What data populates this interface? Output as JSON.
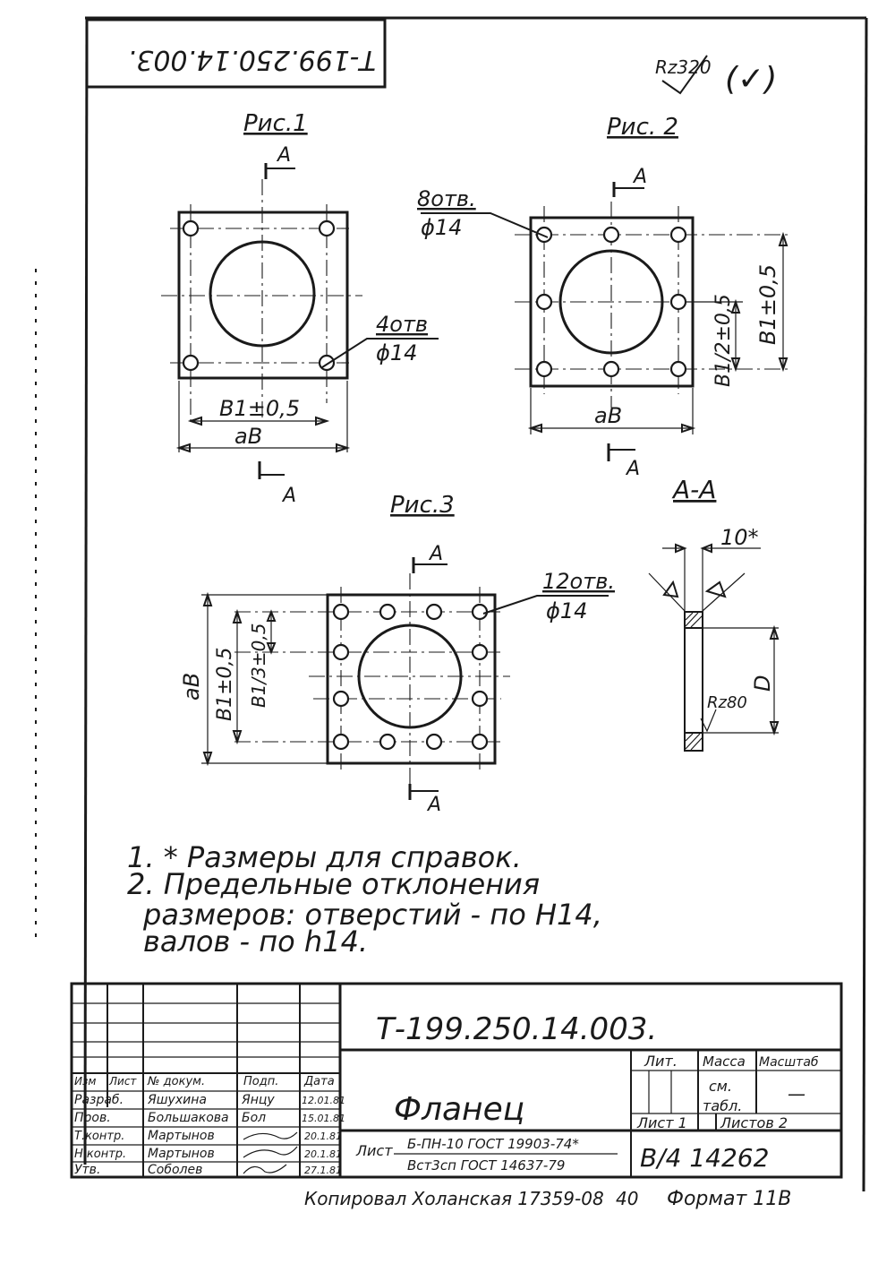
{
  "document": {
    "rotated_code": "Т-199.250.14.003.",
    "roughness_general": "Rz320",
    "check_mark": "(✓)"
  },
  "figures": {
    "fig1": {
      "title": "Рис.1",
      "section_mark": "A",
      "holes_label": "4отв",
      "holes_dia": "ϕ14",
      "dim_b1": "B1±0,5",
      "dim_ab": "aB"
    },
    "fig2": {
      "title": "Рис. 2",
      "section_mark": "A",
      "holes_label": "8отв.",
      "holes_dia": "ϕ14",
      "dim_half": "B1/2±0,5",
      "dim_b1": "B1±0,5",
      "dim_ab": "aB"
    },
    "fig3": {
      "title": "Рис.3",
      "section_mark": "A",
      "holes_label": "12отв.",
      "holes_dia": "ϕ14",
      "dim_ab": "aB",
      "dim_b1": "B1±0,5",
      "dim_third": "B1/3±0,5"
    },
    "section": {
      "title": "A-A",
      "thickness": "10*",
      "diameter": "D",
      "roughness": "Rz80"
    }
  },
  "notes": {
    "line1": "1. * Размеры для справок.",
    "line2": "2. Предельные отклонения",
    "line3": "размеров: отверстий - по H14,",
    "line4": "валов - по h14."
  },
  "title_block": {
    "designation": "Т-199.250.14.003.",
    "name": "Фланец",
    "headers": {
      "izm": "Изм",
      "list": "Лист",
      "doc_no": "№ докум.",
      "sign": "Подп.",
      "date": "Дата"
    },
    "rows": [
      {
        "role": "Разраб.",
        "name": "Яшухина",
        "sign": "Янцу",
        "date": "12.01.81"
      },
      {
        "role": "Пров.",
        "name": "Большакова",
        "sign": "Бол",
        "date": "15.01.81"
      },
      {
        "role": "Т.контр.",
        "name": "Мартынов",
        "sign": "",
        "date": "20.1.81"
      },
      {
        "role": "",
        "name": "",
        "sign": "",
        "date": ""
      },
      {
        "role": "Н.контр.",
        "name": "Мартынов",
        "sign": "",
        "date": "20.1.81"
      },
      {
        "role": "Утв.",
        "name": "Соболев",
        "sign": "",
        "date": "27.1.81"
      }
    ],
    "lit_label": "Лит.",
    "mass_label": "Масса",
    "scale_label": "Масштаб",
    "mass_value_1": "см.",
    "mass_value_2": "табл.",
    "scale_value": "—",
    "sheet_label": "Лист 1",
    "sheets_label": "Листов 2",
    "material_prefix": "Лист",
    "material_line1": "Б-ПН-10 ГОСТ 19903-74*",
    "material_line2": "Вст3сп ГОСТ 14637-79",
    "org_code": "В/4 14262"
  },
  "footer": {
    "copied_by": "Копировал Холанская 17359-08",
    "sheet_no": "40",
    "format": "Формат 11В"
  }
}
